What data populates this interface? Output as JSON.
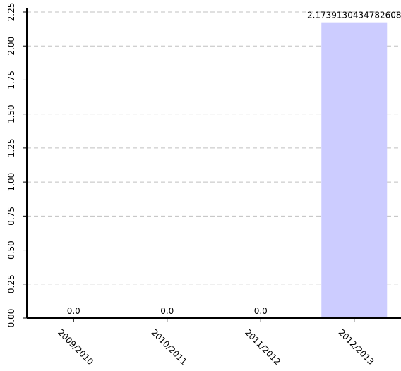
{
  "chart_data": {
    "type": "bar",
    "categories": [
      "2009/2010",
      "2010/2011",
      "2011/2012",
      "2012/2013"
    ],
    "values": [
      0.0,
      0.0,
      0.0,
      2.1739130434782608
    ],
    "data_labels": [
      "0.0",
      "0.0",
      "0.0",
      "2.1739130434782608"
    ],
    "ylim": [
      0,
      2.25
    ],
    "yticks": [
      "0.00",
      "0.25",
      "0.50",
      "0.75",
      "1.00",
      "1.25",
      "1.50",
      "1.75",
      "2.00",
      "2.25"
    ],
    "ytick_values": [
      0,
      0.25,
      0.5,
      0.75,
      1.0,
      1.25,
      1.5,
      1.75,
      2.0,
      2.25
    ],
    "grid": true,
    "bar_color": "#ccccff",
    "grid_color": "#c0c0c0",
    "axis_color": "#000000"
  }
}
